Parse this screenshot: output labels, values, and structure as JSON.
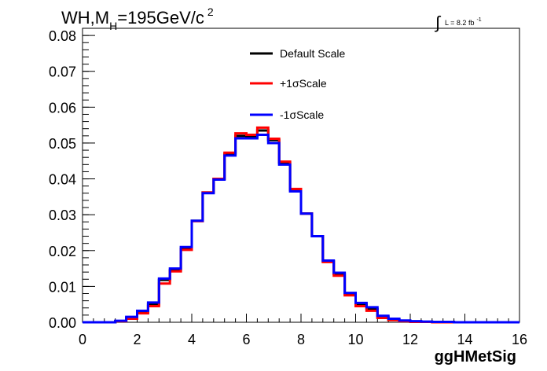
{
  "chart_data": {
    "type": "line",
    "title": {
      "prefix": "WH,M",
      "subscript": "H",
      "middle": "=195GeV/c",
      "superscript": "2"
    },
    "lumi": {
      "symbol": "∫",
      "text": "L = 8.2 fb",
      "superscript": "-1"
    },
    "xlabel": "ggHMetSig",
    "ylabel": "",
    "xlim": [
      0,
      16
    ],
    "ylim": [
      0,
      0.082
    ],
    "xticks": [
      0,
      2,
      4,
      6,
      8,
      10,
      12,
      14,
      16
    ],
    "xtick_labels": [
      "0",
      "2",
      "4",
      "6",
      "8",
      "10",
      "12",
      "14",
      "16"
    ],
    "yticks": [
      0,
      0.01,
      0.02,
      0.03,
      0.04,
      0.05,
      0.06,
      0.07,
      0.08
    ],
    "ytick_labels": [
      "0.00",
      "0.01",
      "0.02",
      "0.03",
      "0.04",
      "0.05",
      "0.06",
      "0.07",
      "0.08"
    ],
    "bin_width": 0.4,
    "bins_start": 0,
    "legend_position": "top-center",
    "series": [
      {
        "name": "Default Scale",
        "color": "#000000",
        "values": [
          0,
          0,
          0,
          0.0003,
          0.0012,
          0.0028,
          0.005,
          0.0118,
          0.0145,
          0.0205,
          0.0283,
          0.0362,
          0.04,
          0.047,
          0.052,
          0.0518,
          0.0535,
          0.0508,
          0.0445,
          0.037,
          0.0303,
          0.024,
          0.017,
          0.0135,
          0.008,
          0.005,
          0.0037,
          0.0015,
          0.0008,
          0.0004,
          0.0002,
          0.0001,
          0.0001,
          0,
          0,
          0,
          0,
          0,
          0,
          0
        ]
      },
      {
        "name": "+1σScale",
        "color": "#ff0000",
        "values": [
          0,
          0,
          0,
          0.0003,
          0.001,
          0.0025,
          0.0045,
          0.0108,
          0.0142,
          0.0202,
          0.0282,
          0.0362,
          0.04,
          0.0473,
          0.0527,
          0.0523,
          0.0543,
          0.0512,
          0.0448,
          0.0372,
          0.0303,
          0.024,
          0.0168,
          0.013,
          0.0075,
          0.0045,
          0.0032,
          0.0012,
          0.0006,
          0.0003,
          0.0001,
          0.0001,
          0,
          0,
          0,
          0,
          0,
          0,
          0,
          0
        ]
      },
      {
        "name": "-1σScale",
        "color": "#0000ff",
        "values": [
          0,
          0,
          0,
          0.0004,
          0.0015,
          0.0032,
          0.0055,
          0.0122,
          0.015,
          0.021,
          0.0283,
          0.036,
          0.0398,
          0.0465,
          0.0513,
          0.0513,
          0.0523,
          0.05,
          0.044,
          0.0365,
          0.0303,
          0.024,
          0.0172,
          0.0138,
          0.0082,
          0.0054,
          0.0042,
          0.0018,
          0.001,
          0.0005,
          0.0003,
          0.0002,
          0.0001,
          0.0001,
          0,
          0,
          0,
          0,
          0,
          0
        ]
      }
    ]
  }
}
